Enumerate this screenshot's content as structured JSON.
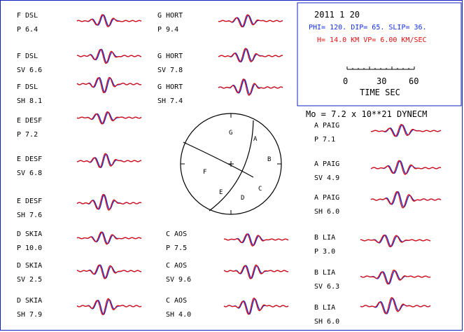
{
  "header": {
    "date": "2011  1 20",
    "mechanism": "PHI= 120. DIP= 65. SLIP=  36.",
    "depth_velocity": "H= 14.0 KM  VP= 6.00 KM/SEC",
    "moment": "Mo =  7.2 x 10**21 DYNECM"
  },
  "time_scale": {
    "ticks": [
      "0",
      "30",
      "60"
    ],
    "label": "TIME  SEC"
  },
  "colors": {
    "observed": "#1030e0",
    "synthetic": "#e01010",
    "frame": "#1020c0"
  },
  "focal_sphere": {
    "stations": [
      "G",
      "A",
      "B",
      "F",
      "E",
      "D",
      "C"
    ]
  },
  "waveforms": [
    {
      "station": "F  DSL",
      "phase": "P",
      "amp": "6.4"
    },
    {
      "station": "F  DSL",
      "phase": "SV",
      "amp": "6.6"
    },
    {
      "station": "F  DSL",
      "phase": "SH",
      "amp": "8.1"
    },
    {
      "station": "E DESF",
      "phase": "P",
      "amp": "7.2"
    },
    {
      "station": "E DESF",
      "phase": "SV",
      "amp": "6.8"
    },
    {
      "station": "E DESF",
      "phase": "SH",
      "amp": "7.6"
    },
    {
      "station": "D SKIA",
      "phase": "P",
      "amp": "10.0"
    },
    {
      "station": "D SKIA",
      "phase": "SV",
      "amp": "2.5"
    },
    {
      "station": "D SKIA",
      "phase": "SH",
      "amp": "7.9"
    },
    {
      "station": "G HORT",
      "phase": "P",
      "amp": "9.4"
    },
    {
      "station": "G HORT",
      "phase": "SV",
      "amp": "7.8"
    },
    {
      "station": "G HORT",
      "phase": "SH",
      "amp": "7.4"
    },
    {
      "station": "C AOS",
      "phase": "P",
      "amp": "7.5"
    },
    {
      "station": "C AOS",
      "phase": "SV",
      "amp": "9.6"
    },
    {
      "station": "C AOS",
      "phase": "SH",
      "amp": "4.0"
    },
    {
      "station": "A PAIG",
      "phase": "P",
      "amp": "7.1"
    },
    {
      "station": "A PAIG",
      "phase": "SV",
      "amp": "4.9"
    },
    {
      "station": "A PAIG",
      "phase": "SH",
      "amp": "6.0"
    },
    {
      "station": "B LIA",
      "phase": "P",
      "amp": "3.0"
    },
    {
      "station": "B LIA",
      "phase": "SV",
      "amp": "6.3"
    },
    {
      "station": "B LIA",
      "phase": "SH",
      "amp": "6.0"
    }
  ]
}
